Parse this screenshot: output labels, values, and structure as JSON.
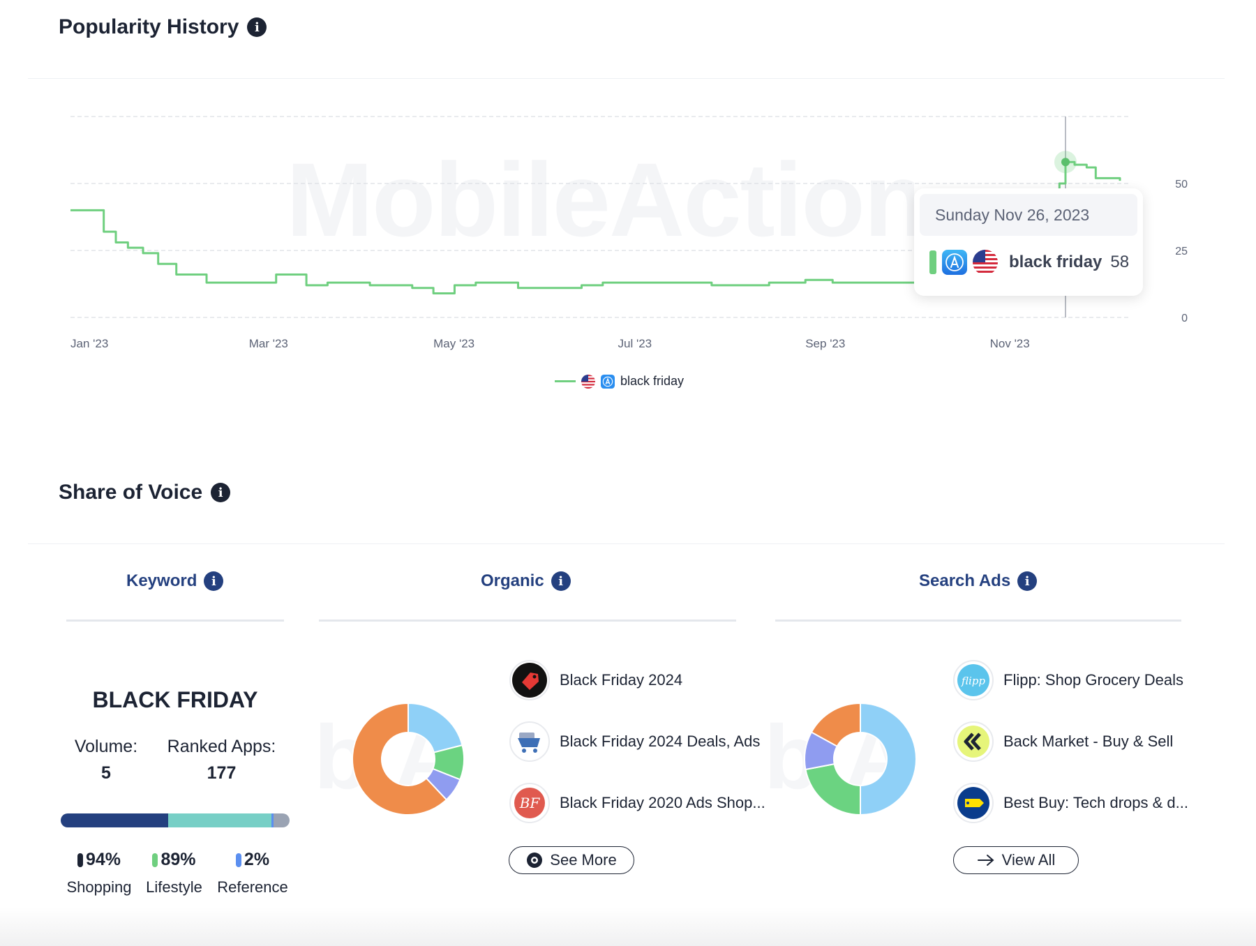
{
  "popularity": {
    "title": "Popularity History",
    "watermark": "MobileAction",
    "tooltip": {
      "date": "Sunday Nov 26, 2023",
      "keyword": "black friday",
      "value": "58"
    },
    "legend": {
      "label": "black friday"
    }
  },
  "chart_data": {
    "type": "line",
    "x_tick_labels": [
      "Jan '23",
      "Mar '23",
      "May '23",
      "Jul '23",
      "Sep '23",
      "Nov '23"
    ],
    "y_tick_labels": [
      "50",
      "25",
      "0"
    ],
    "ylim": [
      0,
      75
    ],
    "y_axis_side": "right",
    "grid": true,
    "legend_placement": "bottom-center",
    "colors": {
      "line": "#6fcf7f",
      "grid": "#dcdfe4"
    },
    "series": [
      {
        "name": "black friday",
        "x": [
          "2023-01-01",
          "2023-01-08",
          "2023-01-12",
          "2023-01-16",
          "2023-01-20",
          "2023-01-25",
          "2023-01-30",
          "2023-02-05",
          "2023-02-10",
          "2023-02-15",
          "2023-02-20",
          "2023-03-01",
          "2023-03-10",
          "2023-03-20",
          "2023-03-27",
          "2023-04-03",
          "2023-04-10",
          "2023-04-17",
          "2023-04-24",
          "2023-05-01",
          "2023-05-08",
          "2023-05-15",
          "2023-05-22",
          "2023-05-29",
          "2023-06-05",
          "2023-06-12",
          "2023-06-19",
          "2023-06-26",
          "2023-07-03",
          "2023-07-10",
          "2023-07-20",
          "2023-08-01",
          "2023-08-10",
          "2023-08-20",
          "2023-09-01",
          "2023-09-10",
          "2023-09-20",
          "2023-10-01",
          "2023-10-10",
          "2023-10-20",
          "2023-10-26",
          "2023-11-01",
          "2023-11-07",
          "2023-11-12",
          "2023-11-16",
          "2023-11-20",
          "2023-11-24",
          "2023-11-26",
          "2023-11-29",
          "2023-12-03",
          "2023-12-06",
          "2023-12-14"
        ],
        "y": [
          40,
          40,
          32,
          28,
          26,
          24,
          20,
          16,
          16,
          13,
          13,
          13,
          16,
          12,
          13,
          13,
          12,
          12,
          11,
          9,
          12,
          13,
          13,
          11,
          11,
          11,
          12,
          13,
          13,
          13,
          13,
          12,
          12,
          13,
          14,
          13,
          13,
          13,
          15,
          17,
          20,
          24,
          26,
          30,
          34,
          44,
          50,
          58,
          57,
          56,
          52,
          51
        ]
      }
    ]
  },
  "share_of_voice": {
    "title": "Share of Voice",
    "tabs": {
      "keyword": "Keyword",
      "organic": "Organic",
      "search_ads": "Search Ads"
    },
    "keyword": {
      "name": "BLACK FRIDAY",
      "volume_label": "Volume:",
      "volume": "5",
      "ranked_label": "Ranked Apps:",
      "ranked": "177",
      "bar": [
        {
          "value": 47,
          "color": "#24407f"
        },
        {
          "value": 45,
          "color": "#77cfc6"
        },
        {
          "value": 1,
          "color": "#5b8ff0"
        },
        {
          "value": 7,
          "color": "#9aa3b3"
        }
      ],
      "categories": [
        {
          "pct": "94%",
          "label": "Shopping",
          "color": "#1c2333"
        },
        {
          "pct": "89%",
          "label": "Lifestyle",
          "color": "#6fcf7f"
        },
        {
          "pct": "2%",
          "label": "Reference",
          "color": "#5b8ff0"
        }
      ]
    },
    "organic": {
      "donut": [
        {
          "value": 62,
          "color": "#ef8c4a"
        },
        {
          "value": 21,
          "color": "#8fd0f7"
        },
        {
          "value": 10,
          "color": "#6bd381"
        },
        {
          "value": 7,
          "color": "#8f9cf0"
        }
      ],
      "donut_order": [
        1,
        2,
        3,
        0
      ],
      "apps": [
        "Black Friday 2024",
        "Black Friday 2024 Deals, Ads",
        "Black Friday 2020 Ads Shop..."
      ],
      "button": "See More"
    },
    "search_ads": {
      "donut": [
        {
          "value": 50,
          "color": "#8fd0f7"
        },
        {
          "value": 22,
          "color": "#6bd381"
        },
        {
          "value": 11,
          "color": "#8f9cf0"
        },
        {
          "value": 17,
          "color": "#ef8c4a"
        }
      ],
      "apps": [
        "Flipp: Shop Grocery Deals",
        "Back Market - Buy & Sell",
        "Best Buy: Tech drops & d..."
      ],
      "button": "View All"
    }
  }
}
